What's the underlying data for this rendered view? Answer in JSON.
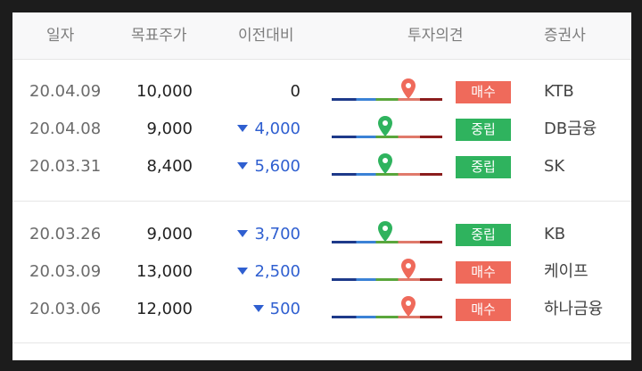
{
  "header": {
    "date": "일자",
    "target": "목표주가",
    "change": "이전대비",
    "opinion": "투자의견",
    "broker": "증권사"
  },
  "colors": {
    "buy": "#ef6a5b",
    "neutral": "#2fb35e",
    "down": "#2f5fd0"
  },
  "rows": [
    {
      "date": "20.04.09",
      "target": "10,000",
      "change": "0",
      "direction": "none",
      "opinion": "매수",
      "opinion_type": "buy",
      "gauge_level": 0.69,
      "broker": "KTB"
    },
    {
      "date": "20.04.08",
      "target": "9,000",
      "change": "4,000",
      "direction": "down",
      "opinion": "중립",
      "opinion_type": "neutral",
      "gauge_level": 0.48,
      "broker": "DB금융"
    },
    {
      "date": "20.03.31",
      "target": "8,400",
      "change": "5,600",
      "direction": "down",
      "opinion": "중립",
      "opinion_type": "neutral",
      "gauge_level": 0.48,
      "broker": "SK"
    },
    {
      "date": "20.03.26",
      "target": "9,000",
      "change": "3,700",
      "direction": "down",
      "opinion": "중립",
      "opinion_type": "neutral",
      "gauge_level": 0.48,
      "broker": "KB"
    },
    {
      "date": "20.03.09",
      "target": "13,000",
      "change": "2,500",
      "direction": "down",
      "opinion": "매수",
      "opinion_type": "buy",
      "gauge_level": 0.69,
      "broker": "케이프"
    },
    {
      "date": "20.03.06",
      "target": "12,000",
      "change": "500",
      "direction": "down",
      "opinion": "매수",
      "opinion_type": "buy",
      "gauge_level": 0.69,
      "broker": "하나금융"
    }
  ]
}
